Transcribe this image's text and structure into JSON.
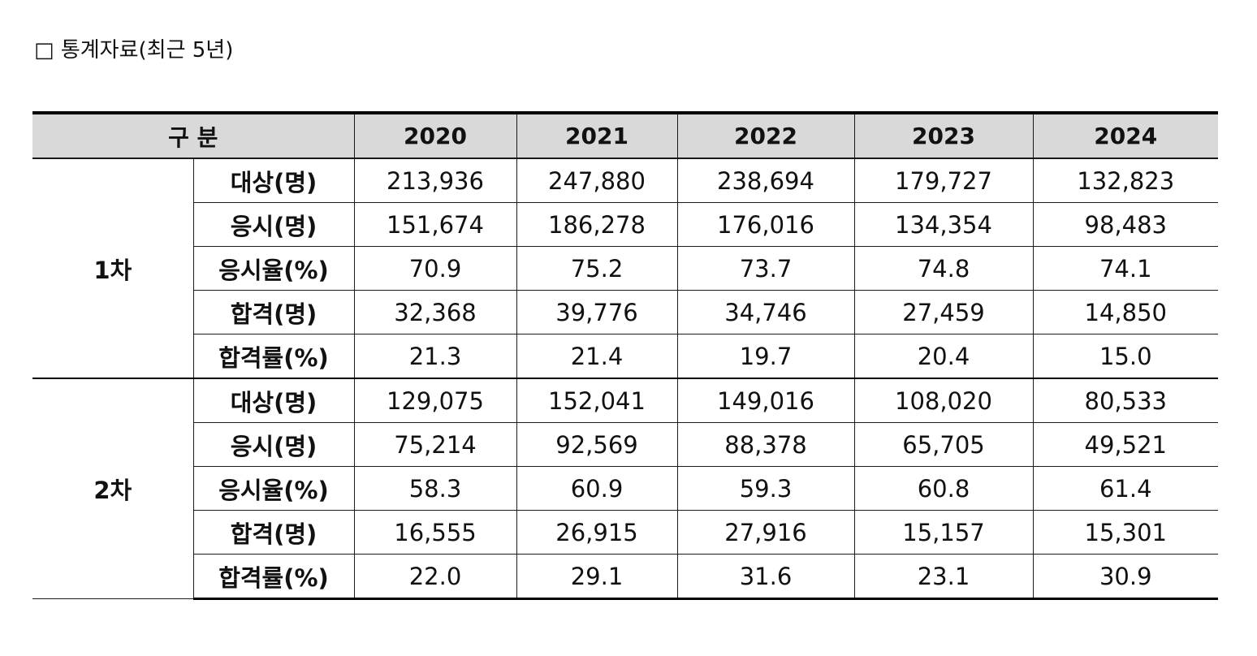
{
  "title": "□ 통계자료(최근 5년)",
  "table": {
    "header": {
      "category_label": "구 분",
      "years": [
        "2020",
        "2021",
        "2022",
        "2023",
        "2024"
      ]
    },
    "groups": [
      {
        "stage": "1차",
        "rows": [
          {
            "metric": "대상(명)",
            "values": [
              "213,936",
              "247,880",
              "238,694",
              "179,727",
              "132,823"
            ]
          },
          {
            "metric": "응시(명)",
            "values": [
              "151,674",
              "186,278",
              "176,016",
              "134,354",
              "98,483"
            ]
          },
          {
            "metric": "응시율(%)",
            "values": [
              "70.9",
              "75.2",
              "73.7",
              "74.8",
              "74.1"
            ]
          },
          {
            "metric": "합격(명)",
            "values": [
              "32,368",
              "39,776",
              "34,746",
              "27,459",
              "14,850"
            ]
          },
          {
            "metric": "합격률(%)",
            "values": [
              "21.3",
              "21.4",
              "19.7",
              "20.4",
              "15.0"
            ]
          }
        ]
      },
      {
        "stage": "2차",
        "rows": [
          {
            "metric": "대상(명)",
            "values": [
              "129,075",
              "152,041",
              "149,016",
              "108,020",
              "80,533"
            ]
          },
          {
            "metric": "응시(명)",
            "values": [
              "75,214",
              "92,569",
              "88,378",
              "65,705",
              "49,521"
            ]
          },
          {
            "metric": "응시율(%)",
            "values": [
              "58.3",
              "60.9",
              "59.3",
              "60.8",
              "61.4"
            ]
          },
          {
            "metric": "합격(명)",
            "values": [
              "16,555",
              "26,915",
              "27,916",
              "15,157",
              "15,301"
            ]
          },
          {
            "metric": "합격률(%)",
            "values": [
              "22.0",
              "29.1",
              "31.6",
              "23.1",
              "30.9"
            ]
          }
        ]
      }
    ]
  }
}
